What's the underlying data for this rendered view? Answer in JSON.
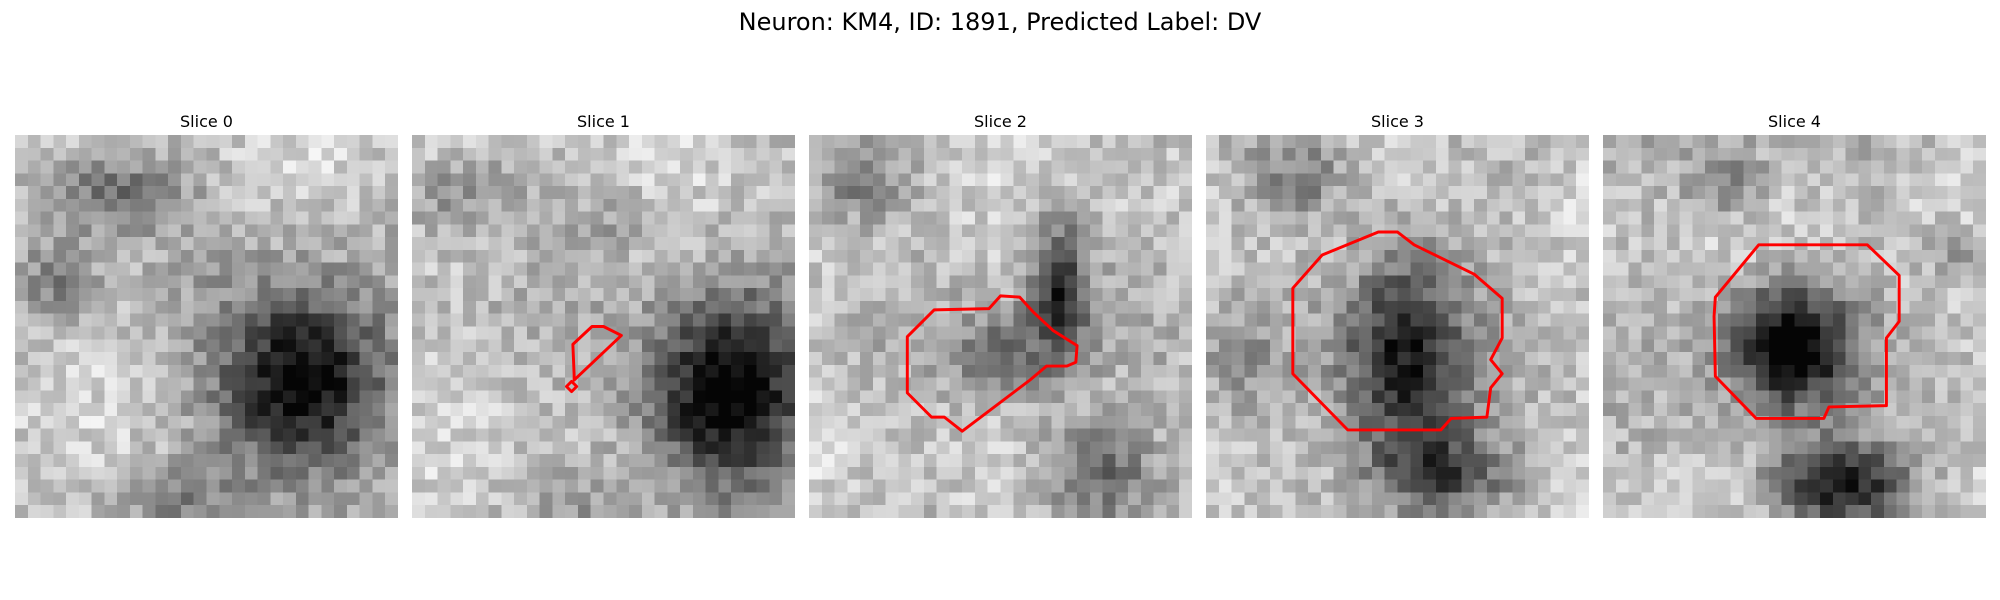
{
  "figure": {
    "title": "Neuron: KM4, ID: 1891, Predicted Label: DV",
    "contour_color": "#ff0000",
    "colormap": "gray"
  },
  "slices": [
    {
      "title": "Slice 0",
      "has_contour": false
    },
    {
      "title": "Slice 1",
      "has_contour": true
    },
    {
      "title": "Slice 2",
      "has_contour": true
    },
    {
      "title": "Slice 3",
      "has_contour": true
    },
    {
      "title": "Slice 4",
      "has_contour": true
    }
  ]
}
